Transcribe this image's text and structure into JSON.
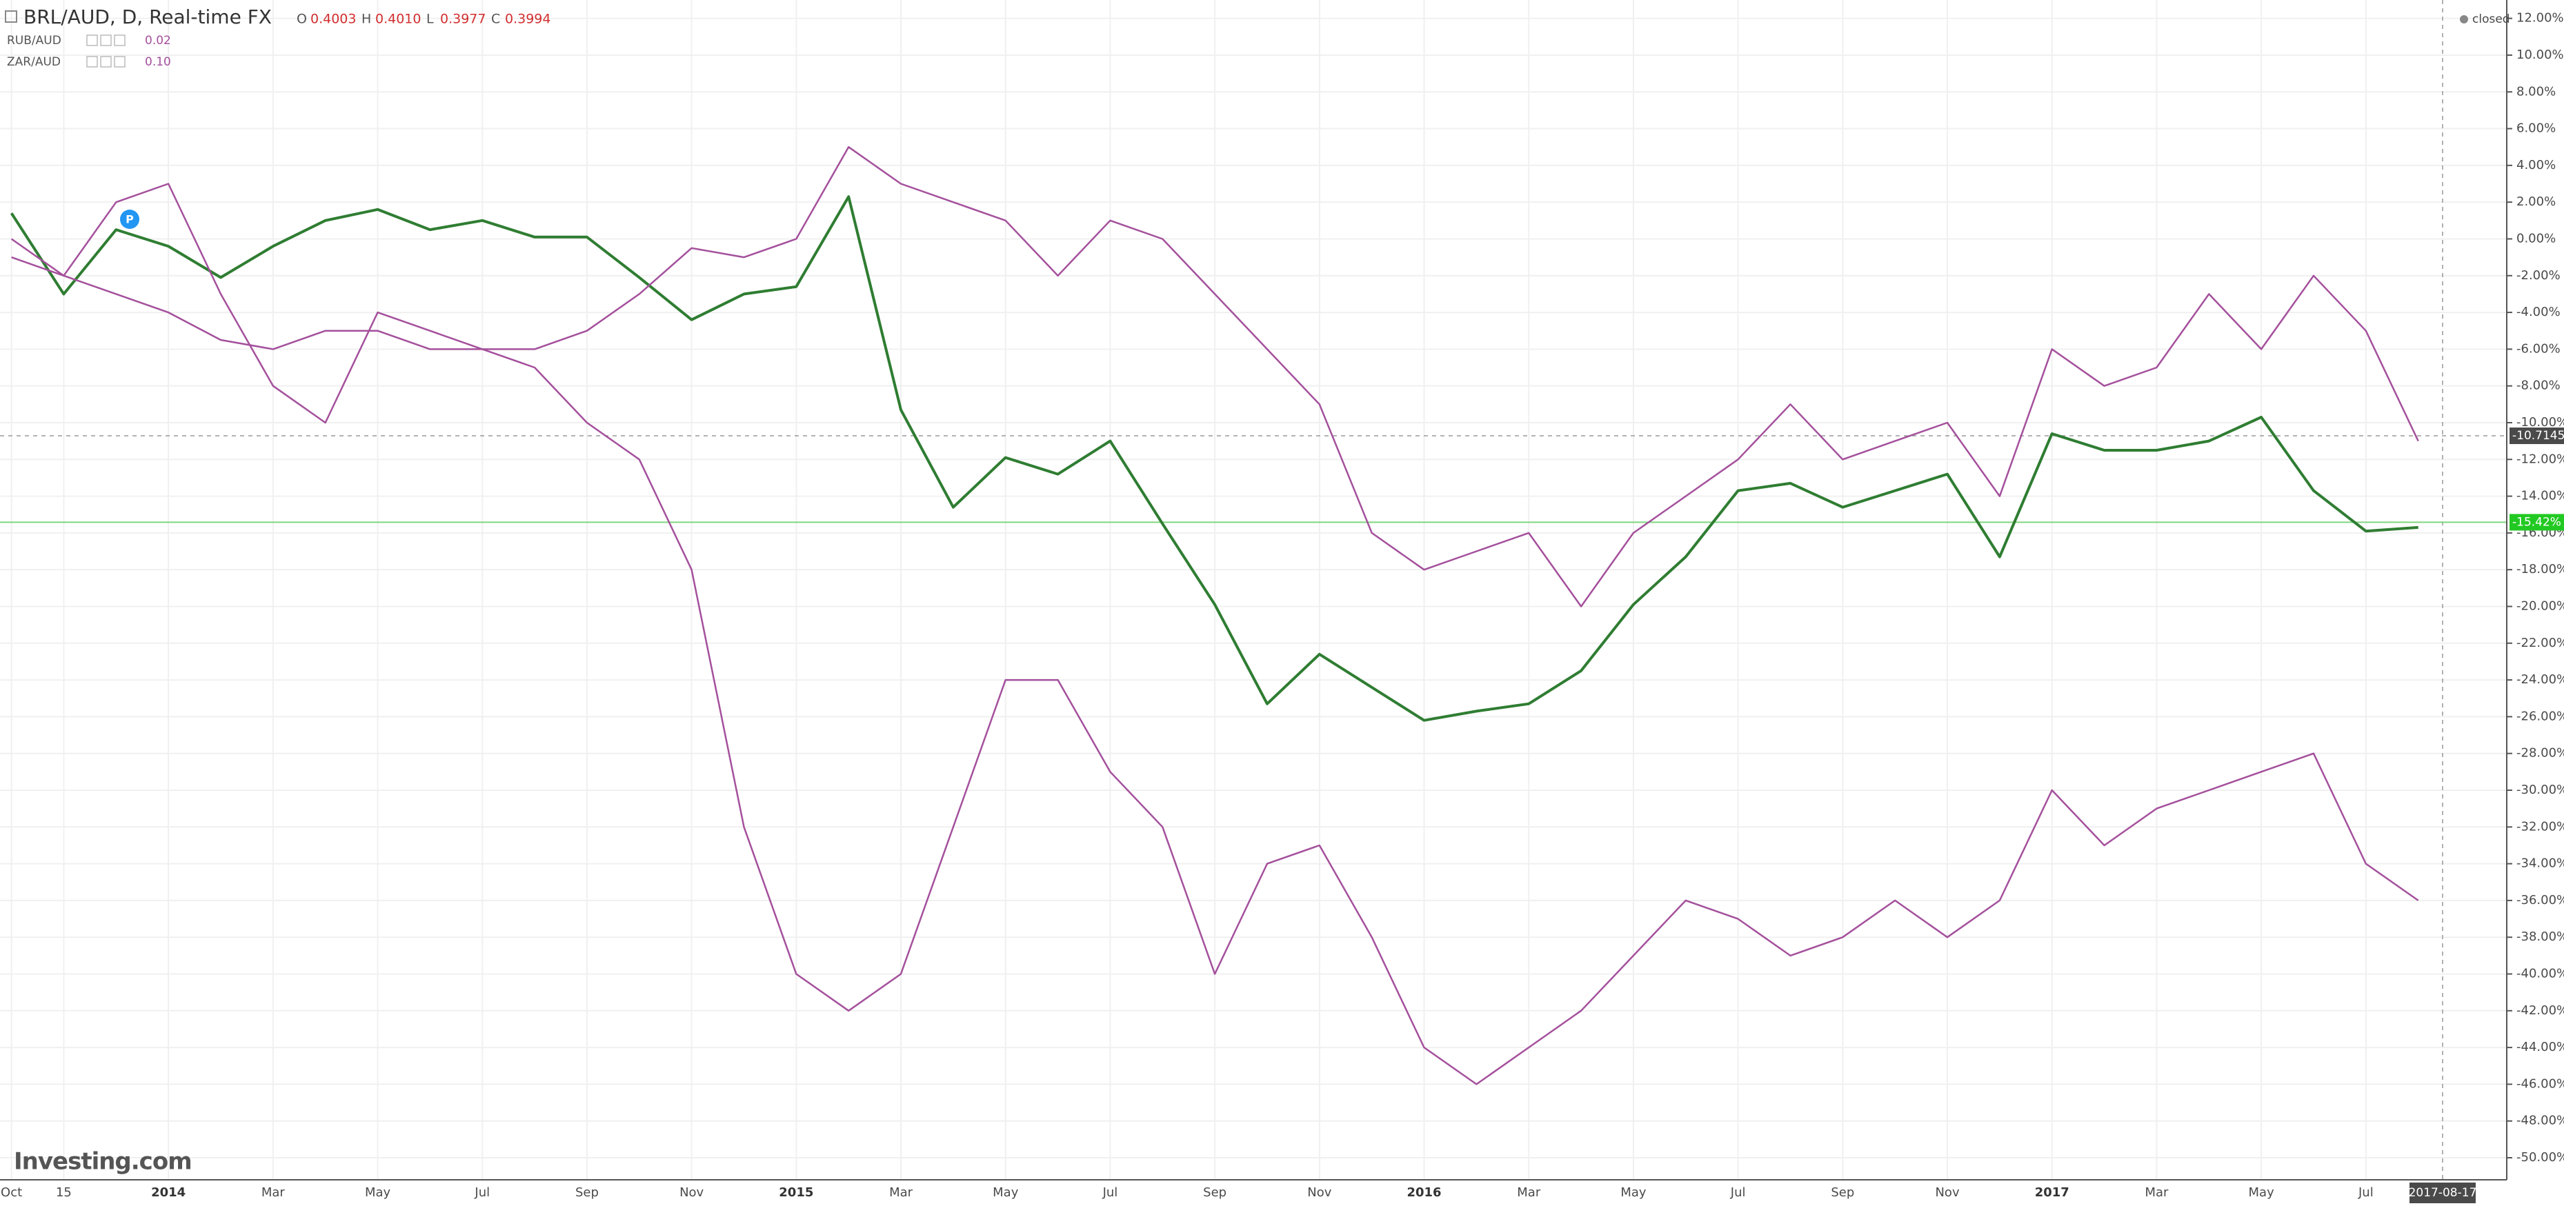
{
  "chart_data": {
    "type": "line",
    "interval_source": ", D, Real-time FX",
    "ohlc": [
      {
        "label": "O",
        "value": "0.4003"
      },
      {
        "label": "H",
        "value": "0.4010"
      },
      {
        "label": "L",
        "value": "0.3977"
      },
      {
        "label": "C",
        "value": "0.3994"
      }
    ],
    "status": "closed",
    "marker": "P",
    "brand": "Investing.com",
    "cursor_date": "2017-08-17",
    "crosshair_value": -10.7145,
    "last_value": {
      "value": -15.42,
      "label": "-15.42%"
    },
    "categories": [
      "Oct",
      "15",
      null,
      "2014",
      null,
      "Mar",
      null,
      "May",
      null,
      "Jul",
      null,
      "Sep",
      null,
      "Nov",
      null,
      "2015",
      null,
      "Mar",
      null,
      "May",
      null,
      "Jul",
      null,
      "Sep",
      null,
      "Nov",
      null,
      "2016",
      null,
      "Mar",
      null,
      "May",
      null,
      "Jul",
      null,
      "Sep",
      null,
      "Nov",
      null,
      "2017",
      null,
      "Mar",
      null,
      "May",
      null,
      "Jul",
      null
    ],
    "series": [
      {
        "name": "BRL/AUD",
        "color": "#2f7d32",
        "values": [
          1.4,
          -3.0,
          0.5,
          -0.4,
          -2.1,
          -0.4,
          1.0,
          1.6,
          0.5,
          1.0,
          0.1,
          0.1,
          -2.1,
          -4.4,
          -3.0,
          -2.6,
          2.3,
          -9.3,
          -14.6,
          -11.9,
          -12.8,
          -11.0,
          -15.5,
          -19.9,
          -25.3,
          -22.6,
          -24.4,
          -26.2,
          -25.7,
          -25.3,
          -23.5,
          -19.9,
          -17.3,
          -13.7,
          -13.3,
          -14.6,
          -13.7,
          -12.8,
          -17.3,
          -10.6,
          -11.5,
          -11.5,
          -11.0,
          -9.7,
          -13.7,
          -15.9,
          -15.7
        ]
      },
      {
        "name": "RUB/AUD",
        "last": "0.02",
        "color": "#a4509c",
        "values": [
          -1,
          -2,
          -3,
          -4,
          -5.5,
          -6,
          -5,
          -5,
          -6,
          -6,
          -7,
          -10,
          -12,
          -18,
          -32,
          -40,
          -42,
          -40,
          -32,
          -24,
          -24,
          -29,
          -32,
          -40,
          -34,
          -33,
          -38,
          -44,
          -46,
          -44,
          -42,
          -39,
          -36,
          -37,
          -39,
          -38,
          -36,
          -38,
          -36,
          -30,
          -33,
          -31,
          -30,
          -29,
          -28,
          -34,
          -36
        ]
      },
      {
        "name": "ZAR/AUD",
        "last": "0.10",
        "color": "#a4509c",
        "values": [
          0,
          -2,
          2,
          3,
          -3,
          -8,
          -10,
          -4,
          -5,
          -6,
          -6,
          -5,
          -3,
          -0.5,
          -1,
          0,
          5,
          3,
          2,
          1,
          -2,
          1,
          0,
          -3,
          -6,
          -9,
          -16,
          -18,
          -17,
          -16,
          -20,
          -16,
          -14,
          -12,
          -9,
          -12,
          -11,
          -10,
          -14,
          -6,
          -8,
          -7,
          -3,
          -6,
          -2,
          -5,
          -11
        ]
      }
    ],
    "ylim": [
      -51.2,
      13
    ],
    "yticks": [
      {
        "value": 12,
        "label": "12.00%"
      },
      {
        "value": 10,
        "label": "10.00%"
      },
      {
        "value": 8,
        "label": "8.00%"
      },
      {
        "value": 6,
        "label": "6.00%"
      },
      {
        "value": 4,
        "label": "4.00%"
      },
      {
        "value": 2,
        "label": "2.00%"
      },
      {
        "value": 0,
        "label": "0.00%"
      },
      {
        "value": -2,
        "label": "-2.00%"
      },
      {
        "value": -4,
        "label": "-4.00%"
      },
      {
        "value": -6,
        "label": "-6.00%"
      },
      {
        "value": -8,
        "label": "-8.00%"
      },
      {
        "value": -10,
        "label": "-10.00%"
      },
      {
        "value": -12,
        "label": "-12.00%"
      },
      {
        "value": -14,
        "label": "-14.00%"
      },
      {
        "value": -16,
        "label": "-16.00%"
      },
      {
        "value": -18,
        "label": "-18.00%"
      },
      {
        "value": -20,
        "label": "-20.00%"
      },
      {
        "value": -22,
        "label": "-22.00%"
      },
      {
        "value": -24,
        "label": "-24.00%"
      },
      {
        "value": -26,
        "label": "-26.00%"
      },
      {
        "value": -28,
        "label": "-28.00%"
      },
      {
        "value": -30,
        "label": "-30.00%"
      },
      {
        "value": -32,
        "label": "-32.00%"
      },
      {
        "value": -34,
        "label": "-34.00%"
      },
      {
        "value": -36,
        "label": "-36.00%"
      },
      {
        "value": -38,
        "label": "-38.00%"
      },
      {
        "value": -40,
        "label": "-40.00%"
      },
      {
        "value": -42,
        "label": "-42.00%"
      },
      {
        "value": -44,
        "label": "-44.00%"
      },
      {
        "value": -46,
        "label": "-46.00%"
      },
      {
        "value": -48,
        "label": "-48.00%"
      },
      {
        "value": -50,
        "label": "-50.00%"
      }
    ],
    "grid": true
  }
}
